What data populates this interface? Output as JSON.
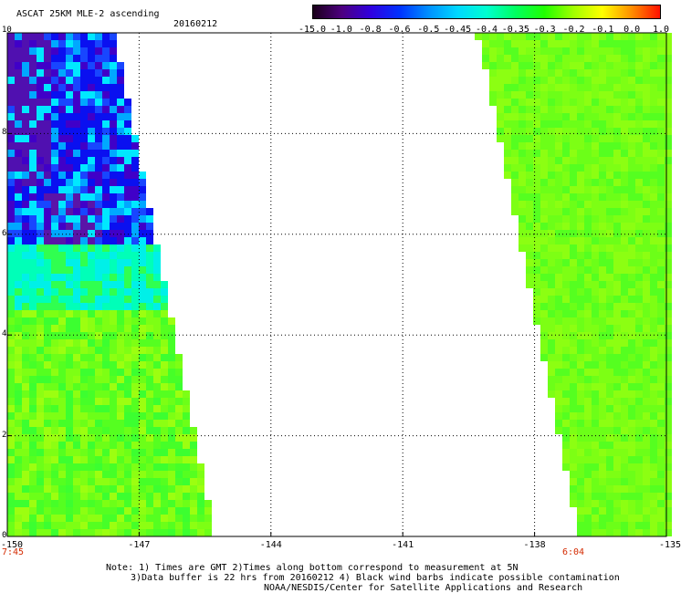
{
  "header": {
    "title": "ASCAT 25KM MLE-2 ascending",
    "date": "20160212"
  },
  "colorbar": {
    "labels": [
      "-15.0",
      "-1.0",
      "-0.8",
      "-0.6",
      "-0.5",
      "-0.45",
      "-0.4",
      "-0.35",
      "-0.3",
      "-0.2",
      "-0.1",
      "0.0",
      "1.0"
    ],
    "colors": [
      "#1a0019",
      "#4d0080",
      "#3000e0",
      "#0032ff",
      "#0090ff",
      "#00d8ff",
      "#00ffd0",
      "#00ff60",
      "#20ff00",
      "#a0ff00",
      "#ffff00",
      "#ff9000",
      "#ff1000"
    ]
  },
  "axes": {
    "x_ticks": [
      "-150",
      "-147",
      "-144",
      "-141",
      "-138",
      "-135"
    ],
    "y_ticks": [
      "10",
      "8",
      "6",
      "4",
      "2",
      "0"
    ],
    "x_range": [
      -150,
      -135
    ],
    "y_range": [
      0,
      10
    ]
  },
  "times": {
    "left": "7:45",
    "right": "6:04"
  },
  "notes": {
    "line1": "Note: 1) Times are GMT 2)Times along bottom correspond to measurement at 5N",
    "line2": "3)Data buffer is 22 hrs from 20160212 4) Black wind barbs indicate possible contamination",
    "line3": "NOAA/NESDIS/Center for Satellite Applications and Research"
  }
}
